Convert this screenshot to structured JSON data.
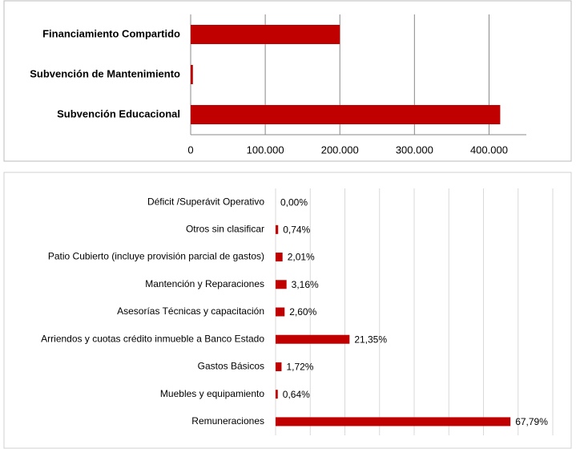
{
  "chart_data": [
    {
      "type": "bar",
      "orientation": "horizontal",
      "categories": [
        "Financiamiento Compartido",
        "Subvención de Mantenimiento",
        "Subvención Educacional"
      ],
      "values": [
        200000,
        3000,
        415000
      ],
      "color": "#c00000",
      "xlim": [
        0,
        450000
      ],
      "xticks": [
        0,
        {
          "value": 100000,
          "label": "100.000"
        },
        {
          "value": 200000,
          "label": "200.000"
        },
        {
          "value": 300000,
          "label": "300.000"
        },
        {
          "value": 400000,
          "label": "400.000"
        }
      ],
      "grid": true
    },
    {
      "type": "bar",
      "orientation": "horizontal",
      "categories": [
        "Déficit /Superávit Operativo",
        "Otros sin clasificar",
        "Patio Cubierto (incluye provisión parcial de gastos)",
        "Mantención y Reparaciones",
        "Asesorías Técnicas y capacitación",
        "Arriendos y cuotas crédito inmueble a Banco Estado",
        "Gastos Básicos",
        "Muebles y equipamiento",
        "Remuneraciones"
      ],
      "values": [
        0,
        0.74,
        2.01,
        3.16,
        2.6,
        21.35,
        1.72,
        0.64,
        67.79
      ],
      "value_labels": [
        "0,00%",
        "0,74%",
        "2,01%",
        "3,16%",
        "2,60%",
        "21,35%",
        "1,72%",
        "0,64%",
        "67,79%"
      ],
      "color": "#c00000",
      "xlim": [
        0,
        80
      ],
      "xticks": [
        0,
        10,
        20,
        30,
        40,
        50,
        60,
        70,
        80
      ],
      "grid": true
    }
  ]
}
